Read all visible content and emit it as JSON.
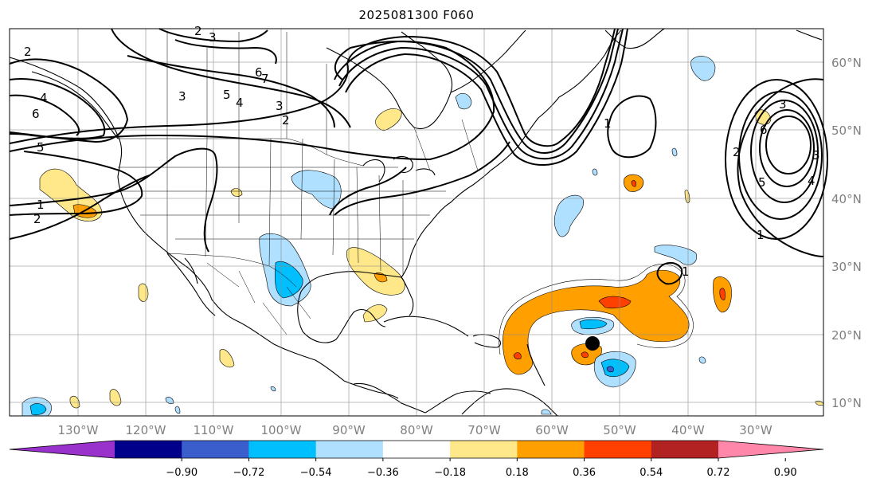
{
  "title": "2025081300 F060",
  "map": {
    "lat_labels": [
      "60°N",
      "50°N",
      "40°N",
      "30°N",
      "20°N",
      "10°N"
    ],
    "lon_labels": [
      "130°W",
      "120°W",
      "110°W",
      "100°W",
      "90°W",
      "80°W",
      "70°W",
      "60°W",
      "50°W",
      "40°W",
      "30°W"
    ],
    "contour_labels": [
      "3",
      "2",
      "2",
      "5",
      "4",
      "3",
      "6",
      "3",
      "5",
      "4",
      "7",
      "2",
      "1",
      "2",
      "6",
      "1",
      "1",
      "3",
      "6",
      "2",
      "5",
      "4",
      "3",
      "1"
    ],
    "marker": "storm-center-dot"
  },
  "colorbar": {
    "colors": [
      "#9932cc",
      "#00008b",
      "#3a5fcd",
      "#00bfff",
      "#afe0ff",
      "#ffffff",
      "#ffe88a",
      "#ff9f00",
      "#ff4000",
      "#b22222",
      "#ff88aa"
    ],
    "ticks": [
      "−0.90",
      "−0.72",
      "−0.54",
      "−0.36",
      "−0.18",
      "0.18",
      "0.36",
      "0.54",
      "0.72",
      "0.90"
    ]
  }
}
